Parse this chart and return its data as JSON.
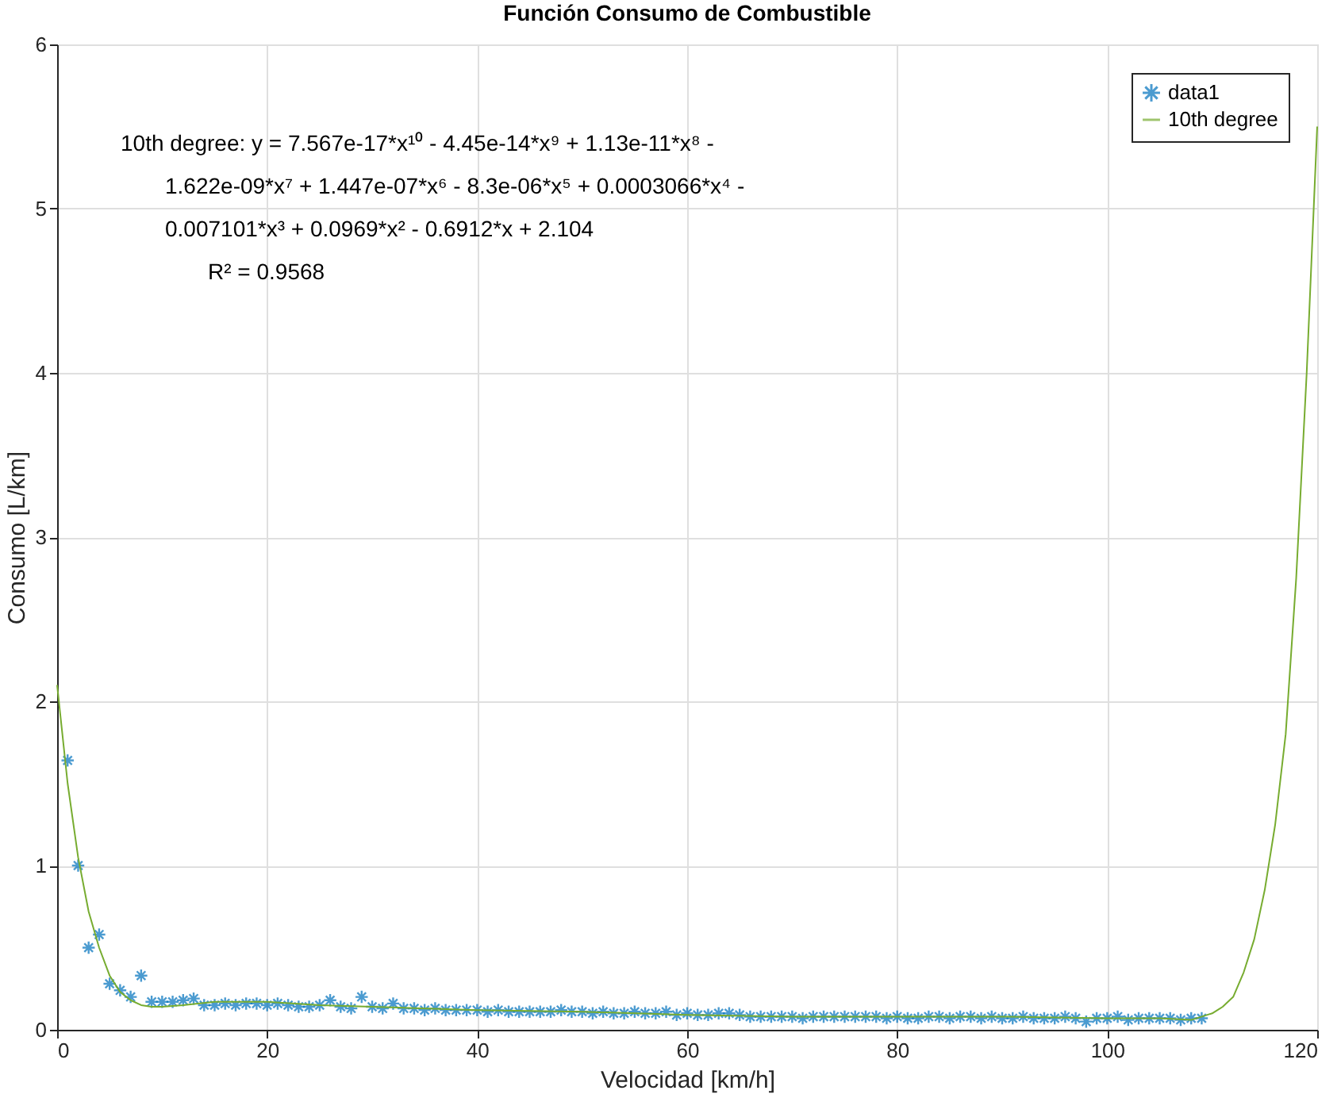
{
  "chart_data": {
    "type": "scatter",
    "title": "Función Consumo de Combustible",
    "xlabel": "Velocidad [km/h]",
    "ylabel": "Consumo [L/km]",
    "xlim": [
      0,
      120
    ],
    "xticks": [
      0,
      20,
      40,
      60,
      80,
      100,
      120
    ],
    "ylim": [
      0,
      6
    ],
    "yticks": [
      0,
      1,
      2,
      3,
      4,
      5,
      6
    ],
    "grid": true,
    "legend": "top right",
    "annotations": [
      "10th degree:  y = 7.567e-17*x¹⁰ - 4.45e-14*x⁹ + 1.13e-11*x⁸ -",
      "1.622e-09*x⁷ + 1.447e-07*x⁶ - 8.3e-06*x⁵ + 0.0003066*x⁴ -",
      "0.007101*x³ + 0.0969*x² - 0.6912*x + 2.104",
      "R² = 0.9568"
    ],
    "series": [
      {
        "name": "data1",
        "marker": "cross",
        "color": "#0072bd",
        "x": [
          1,
          2,
          3,
          4,
          5,
          6,
          7,
          8,
          9,
          10,
          11,
          12,
          13,
          14,
          15,
          16,
          17,
          18,
          19,
          20,
          21,
          22,
          23,
          24,
          25,
          26,
          27,
          28,
          29,
          30,
          31,
          32,
          33,
          34,
          35,
          36,
          37,
          38,
          39,
          40,
          41,
          42,
          43,
          44,
          45,
          46,
          47,
          48,
          49,
          50,
          51,
          52,
          53,
          54,
          55,
          56,
          57,
          58,
          59,
          60,
          61,
          62,
          63,
          64,
          65,
          66,
          67,
          68,
          69,
          70,
          71,
          72,
          73,
          74,
          75,
          76,
          77,
          78,
          79,
          80,
          81,
          82,
          83,
          84,
          85,
          86,
          87,
          88,
          89,
          90,
          91,
          92,
          93,
          94,
          95,
          96,
          97,
          98,
          99,
          100,
          101,
          102,
          103,
          104,
          105,
          106,
          107,
          108,
          109
        ],
        "values": [
          1.64,
          1.0,
          0.5,
          0.58,
          0.28,
          0.24,
          0.2,
          0.33,
          0.17,
          0.17,
          0.17,
          0.18,
          0.19,
          0.15,
          0.15,
          0.16,
          0.15,
          0.16,
          0.16,
          0.15,
          0.16,
          0.15,
          0.14,
          0.14,
          0.15,
          0.18,
          0.14,
          0.13,
          0.2,
          0.14,
          0.13,
          0.16,
          0.13,
          0.13,
          0.12,
          0.13,
          0.12,
          0.12,
          0.12,
          0.12,
          0.11,
          0.12,
          0.11,
          0.11,
          0.11,
          0.11,
          0.11,
          0.12,
          0.11,
          0.11,
          0.1,
          0.11,
          0.1,
          0.1,
          0.11,
          0.1,
          0.1,
          0.11,
          0.09,
          0.1,
          0.09,
          0.09,
          0.1,
          0.1,
          0.09,
          0.08,
          0.08,
          0.08,
          0.08,
          0.08,
          0.07,
          0.08,
          0.08,
          0.08,
          0.08,
          0.08,
          0.08,
          0.08,
          0.07,
          0.08,
          0.07,
          0.07,
          0.08,
          0.08,
          0.07,
          0.08,
          0.08,
          0.07,
          0.08,
          0.07,
          0.07,
          0.08,
          0.07,
          0.07,
          0.07,
          0.08,
          0.07,
          0.05,
          0.07,
          0.07,
          0.08,
          0.06,
          0.07,
          0.07,
          0.07,
          0.07,
          0.06,
          0.07,
          0.07
        ]
      },
      {
        "name": "10th degree",
        "type": "line",
        "line_style": "solid",
        "color": "#77ac30",
        "x": [
          0,
          1,
          2,
          3,
          4,
          5,
          6,
          7,
          8,
          9,
          10,
          12,
          15,
          20,
          25,
          30,
          40,
          50,
          60,
          70,
          80,
          90,
          100,
          105,
          108,
          110,
          111,
          112,
          113,
          114,
          115,
          116,
          117,
          118,
          119,
          120
        ],
        "values": [
          2.1,
          1.5,
          1.05,
          0.72,
          0.5,
          0.33,
          0.23,
          0.18,
          0.15,
          0.14,
          0.14,
          0.15,
          0.17,
          0.17,
          0.15,
          0.14,
          0.12,
          0.11,
          0.09,
          0.08,
          0.08,
          0.08,
          0.07,
          0.07,
          0.06,
          0.1,
          0.14,
          0.2,
          0.35,
          0.55,
          0.85,
          1.25,
          1.8,
          2.75,
          4.0,
          5.5
        ]
      }
    ]
  }
}
